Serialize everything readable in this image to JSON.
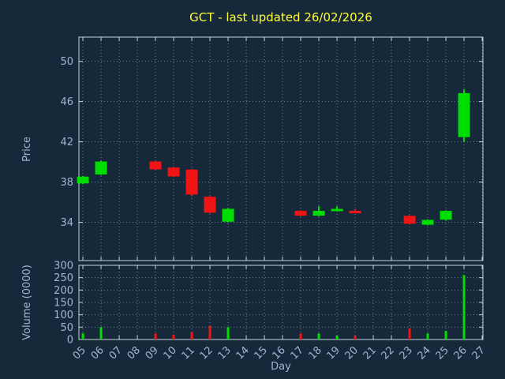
{
  "colors": {
    "background": "#16293a",
    "title": "#ffff33",
    "text": "#9fb6d4",
    "grid": "#6e8398",
    "border": "#c8d2dc",
    "up": "#00dd00",
    "down": "#f01414"
  },
  "chart_data": {
    "type": "candlestick",
    "title": "GCT - last updated 26/02/2026",
    "xlabel": "Day",
    "price_axis": {
      "label": "Price",
      "ticks": [
        34,
        38,
        42,
        46,
        50
      ],
      "range": [
        30.2,
        52.4
      ]
    },
    "volume_axis": {
      "label": "Volume (0000)",
      "ticks": [
        0,
        50,
        100,
        150,
        200,
        250,
        300
      ],
      "range": [
        0,
        300
      ]
    },
    "x_axis": {
      "tick_labels": [
        "05",
        "06",
        "07",
        "08",
        "09",
        "10",
        "11",
        "12",
        "13",
        "14",
        "15",
        "16",
        "17",
        "18",
        "19",
        "20",
        "21",
        "22",
        "23",
        "24",
        "25",
        "26",
        "27"
      ],
      "range": [
        4.78,
        27.04
      ]
    },
    "candles": [
      {
        "day": 5,
        "open": 37.9,
        "high": 38.6,
        "low": 37.8,
        "close": 38.5
      },
      {
        "day": 6,
        "open": 38.8,
        "high": 40.1,
        "low": 38.7,
        "close": 40.0
      },
      {
        "day": 9,
        "open": 40.0,
        "high": 40.1,
        "low": 39.2,
        "close": 39.3
      },
      {
        "day": 10,
        "open": 39.4,
        "high": 39.5,
        "low": 38.5,
        "close": 38.6
      },
      {
        "day": 11,
        "open": 39.2,
        "high": 39.3,
        "low": 36.6,
        "close": 36.8
      },
      {
        "day": 12,
        "open": 36.5,
        "high": 36.6,
        "low": 34.9,
        "close": 35.0
      },
      {
        "day": 13,
        "open": 34.1,
        "high": 35.4,
        "low": 34.0,
        "close": 35.3
      },
      {
        "day": 17,
        "open": 35.1,
        "high": 35.2,
        "low": 34.6,
        "close": 34.7
      },
      {
        "day": 18,
        "open": 34.7,
        "high": 35.6,
        "low": 34.6,
        "close": 35.1
      },
      {
        "day": 19,
        "open": 35.3,
        "high": 35.6,
        "low": 35.1,
        "close": 35.3
      },
      {
        "day": 20,
        "open": 35.1,
        "high": 35.3,
        "low": 34.9,
        "close": 35.0
      },
      {
        "day": 23,
        "open": 34.6,
        "high": 34.7,
        "low": 33.8,
        "close": 33.9
      },
      {
        "day": 24,
        "open": 33.8,
        "high": 34.3,
        "low": 33.7,
        "close": 34.2
      },
      {
        "day": 25,
        "open": 34.3,
        "high": 35.2,
        "low": 34.2,
        "close": 35.1
      },
      {
        "day": 26,
        "open": 42.5,
        "high": 47.2,
        "low": 42.0,
        "close": 46.8
      }
    ],
    "volumes": [
      {
        "day": 5,
        "value": 25,
        "direction": "up"
      },
      {
        "day": 6,
        "value": 50,
        "direction": "up"
      },
      {
        "day": 9,
        "value": 25,
        "direction": "down"
      },
      {
        "day": 10,
        "value": 20,
        "direction": "down"
      },
      {
        "day": 11,
        "value": 30,
        "direction": "down"
      },
      {
        "day": 12,
        "value": 55,
        "direction": "down"
      },
      {
        "day": 13,
        "value": 50,
        "direction": "up"
      },
      {
        "day": 17,
        "value": 25,
        "direction": "down"
      },
      {
        "day": 18,
        "value": 25,
        "direction": "up"
      },
      {
        "day": 19,
        "value": 15,
        "direction": "up"
      },
      {
        "day": 20,
        "value": 15,
        "direction": "down"
      },
      {
        "day": 23,
        "value": 45,
        "direction": "down"
      },
      {
        "day": 24,
        "value": 25,
        "direction": "up"
      },
      {
        "day": 25,
        "value": 35,
        "direction": "up"
      },
      {
        "day": 26,
        "value": 260,
        "direction": "up"
      }
    ]
  }
}
